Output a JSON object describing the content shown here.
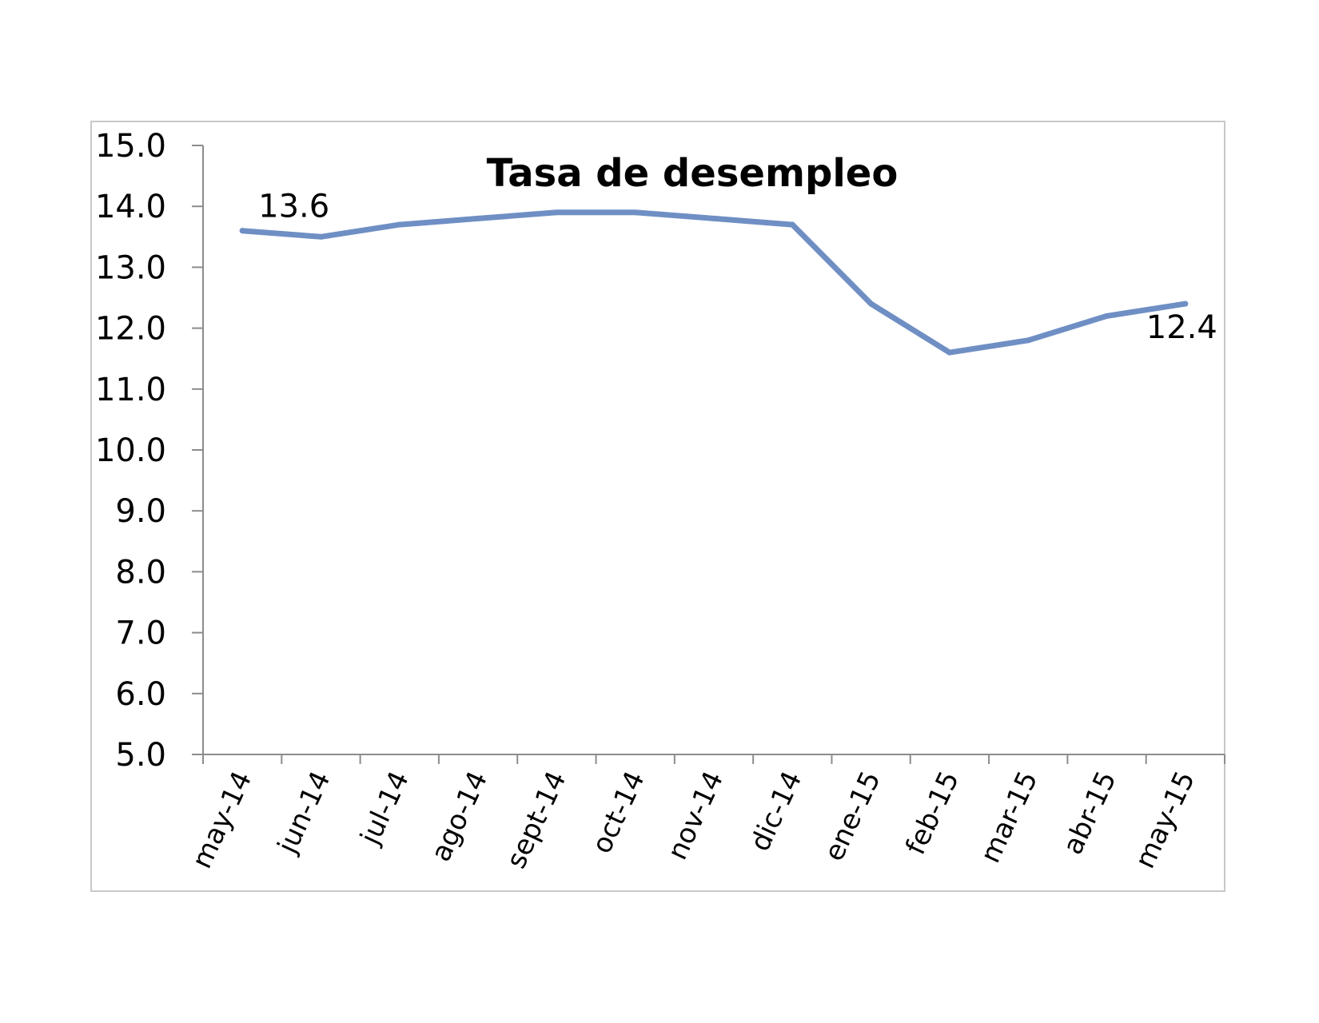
{
  "chart_data": {
    "type": "line",
    "title": "Tasa de desempleo",
    "xlabel": "",
    "ylabel": "",
    "categories": [
      "may-14",
      "jun-14",
      "jul-14",
      "ago-14",
      "sept-14",
      "oct-14",
      "nov-14",
      "dic-14",
      "ene-15",
      "feb-15",
      "mar-15",
      "abr-15",
      "may-15"
    ],
    "series": [
      {
        "values": [
          13.6,
          13.5,
          13.7,
          13.8,
          13.9,
          13.9,
          13.8,
          13.7,
          12.4,
          11.6,
          11.8,
          12.2,
          12.4
        ]
      }
    ],
    "data_labels": [
      {
        "index": 0,
        "text": "13.6"
      },
      {
        "index": 12,
        "text": "12.4"
      }
    ],
    "ylim": [
      5.0,
      15.0
    ],
    "y_ticks": [
      "5.0",
      "6.0",
      "7.0",
      "8.0",
      "9.0",
      "10.0",
      "11.0",
      "12.0",
      "13.0",
      "14.0",
      "15.0"
    ],
    "grid": false,
    "legend": "none",
    "colors": {
      "line": "#6f8fc4",
      "axis": "#8c8c8c",
      "frame": "#c8c8c8"
    }
  }
}
